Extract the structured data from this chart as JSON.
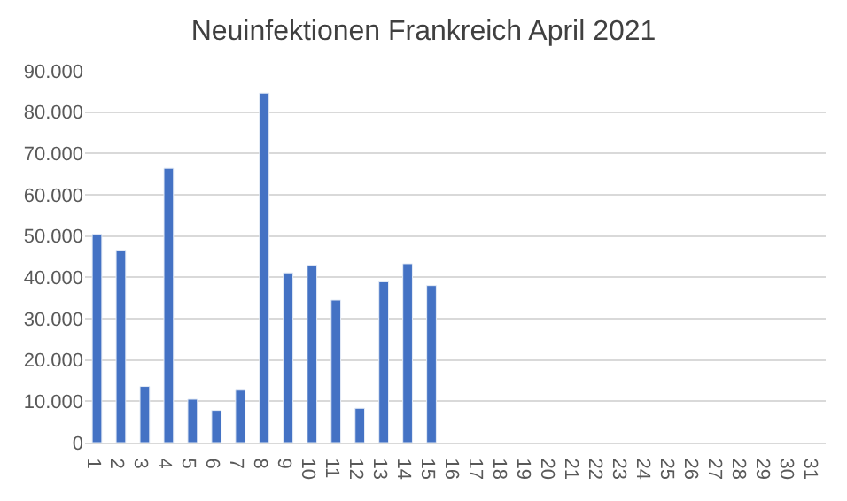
{
  "chart_data": {
    "type": "bar",
    "title": "Neuinfektionen Frankreich April 2021",
    "categories": [
      "1",
      "2",
      "3",
      "4",
      "5",
      "6",
      "7",
      "8",
      "9",
      "10",
      "11",
      "12",
      "13",
      "14",
      "15",
      "16",
      "17",
      "18",
      "19",
      "20",
      "21",
      "22",
      "23",
      "24",
      "25",
      "26",
      "27",
      "28",
      "29",
      "30",
      "31"
    ],
    "values": [
      50400,
      46400,
      13600,
      66400,
      10500,
      7800,
      12700,
      84600,
      41100,
      42900,
      34500,
      8300,
      38900,
      43300,
      38000,
      null,
      null,
      null,
      null,
      null,
      null,
      null,
      null,
      null,
      null,
      null,
      null,
      null,
      null,
      null,
      null
    ],
    "color": "#4472c4",
    "ylim": [
      0,
      90000
    ],
    "yticks": [
      0,
      {
        "value": 10000,
        "label": "10.000"
      },
      {
        "value": 20000,
        "label": "20.000"
      },
      {
        "value": 30000,
        "label": "30.000"
      },
      {
        "value": 40000,
        "label": "40.000"
      },
      {
        "value": 50000,
        "label": "50.000"
      },
      {
        "value": 60000,
        "label": "60.000"
      },
      {
        "value": 70000,
        "label": "70.000"
      },
      {
        "value": 80000,
        "label": "80.000"
      },
      {
        "value": 90000,
        "label": "90.000"
      }
    ],
    "grid": "y",
    "legend": false
  }
}
